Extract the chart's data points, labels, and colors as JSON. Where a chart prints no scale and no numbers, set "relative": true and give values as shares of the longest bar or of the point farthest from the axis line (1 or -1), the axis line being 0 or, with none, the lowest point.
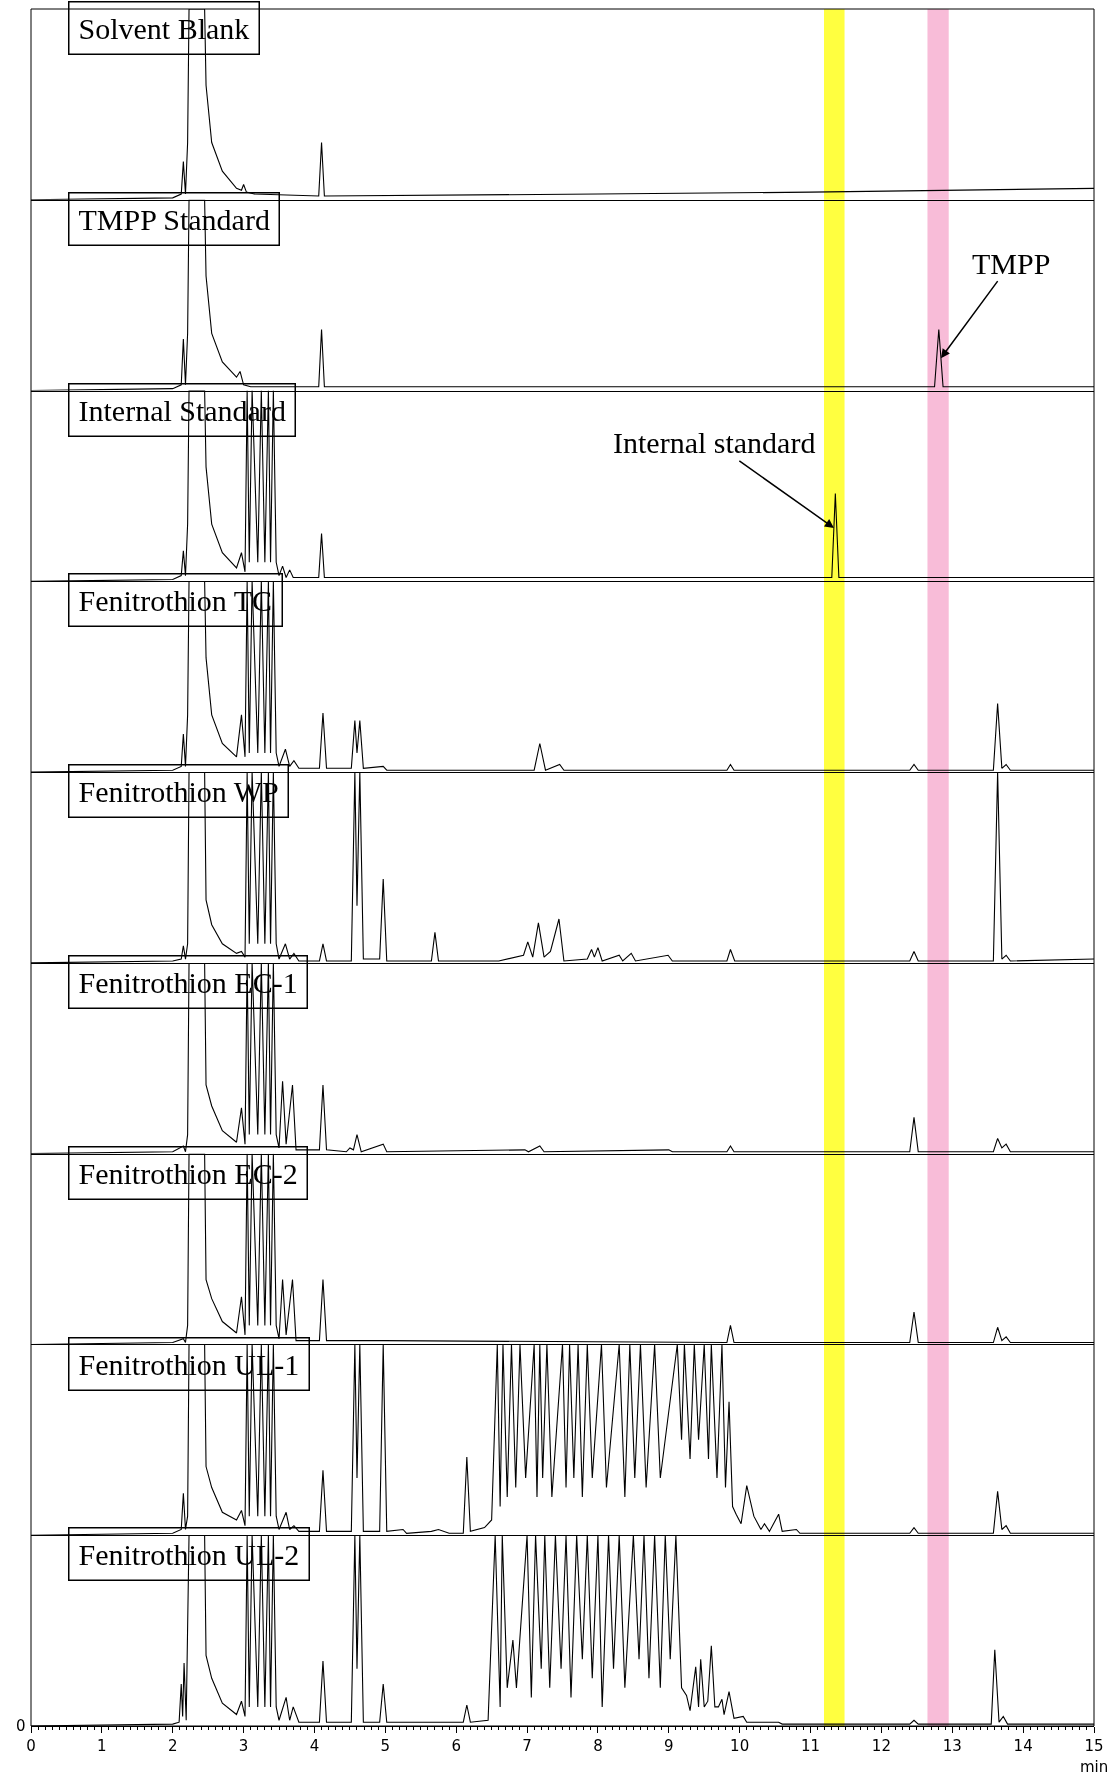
{
  "chart_data": [
    {
      "type": "line",
      "relative": true,
      "xlim": [
        0,
        15
      ],
      "tick_labels": false,
      "bands": [
        {
          "axis": "x",
          "from": 11.19,
          "to": 11.48,
          "color": "#ffff40"
        },
        {
          "axis": "x",
          "from": 12.65,
          "to": 12.95,
          "color": "#f8bcd8"
        }
      ],
      "series": [
        {
          "name": "Solvent Blank",
          "color": "#000000",
          "x": [
            0,
            2.0,
            2.12,
            2.15,
            2.18,
            2.21,
            2.23,
            2.45,
            2.47,
            2.55,
            2.7,
            2.9,
            2.97,
            3.0,
            3.04,
            3.15,
            4.06,
            4.1,
            4.14,
            8,
            11,
            15
          ],
          "values": [
            0,
            0.01,
            0.03,
            0.2,
            0.03,
            0.3,
            1,
            1,
            0.6,
            0.3,
            0.15,
            0.06,
            0.05,
            0.08,
            0.04,
            0.03,
            0.02,
            0.3,
            0.02,
            0.03,
            0.04,
            0.06
          ]
        }
      ]
    },
    {
      "type": "line",
      "relative": true,
      "xlim": [
        0,
        15
      ],
      "tick_labels": false,
      "bands": [
        {
          "axis": "x",
          "from": 11.19,
          "to": 11.48,
          "color": "#ffff40"
        },
        {
          "axis": "x",
          "from": 12.65,
          "to": 12.95,
          "color": "#f8bcd8"
        }
      ],
      "annotations": [
        {
          "text": "TMPP",
          "x": 12.84,
          "y": 0.17
        }
      ],
      "series": [
        {
          "name": "TMPP Standard",
          "color": "#000000",
          "x": [
            0,
            2.0,
            2.12,
            2.15,
            2.18,
            2.21,
            2.23,
            2.45,
            2.47,
            2.55,
            2.7,
            2.9,
            2.95,
            3.0,
            3.1,
            4.06,
            4.1,
            4.14,
            8,
            12.75,
            12.81,
            12.87,
            15
          ],
          "values": [
            0,
            0.01,
            0.03,
            0.27,
            0.03,
            0.3,
            1,
            1,
            0.6,
            0.3,
            0.15,
            0.07,
            0.1,
            0.03,
            0.02,
            0.02,
            0.32,
            0.02,
            0.02,
            0.02,
            0.32,
            0.02,
            0.02
          ]
        }
      ]
    },
    {
      "type": "line",
      "relative": true,
      "xlim": [
        0,
        15
      ],
      "tick_labels": false,
      "bands": [
        {
          "axis": "x",
          "from": 11.19,
          "to": 11.48,
          "color": "#ffff40"
        },
        {
          "axis": "x",
          "from": 12.65,
          "to": 12.95,
          "color": "#f8bcd8"
        }
      ],
      "annotations": [
        {
          "text": "Internal standard",
          "x": 11.33,
          "y": 0.28
        }
      ],
      "series": [
        {
          "name": "Internal Standard",
          "color": "#000000",
          "x": [
            0,
            2.0,
            2.12,
            2.15,
            2.18,
            2.21,
            2.23,
            2.45,
            2.47,
            2.55,
            2.7,
            2.9,
            2.97,
            3.02,
            3.05,
            3.08,
            3.12,
            3.2,
            3.25,
            3.3,
            3.35,
            3.38,
            3.42,
            3.46,
            3.5,
            3.55,
            3.6,
            3.65,
            3.7,
            4.06,
            4.1,
            4.14,
            8,
            11.3,
            11.35,
            11.4,
            15
          ],
          "values": [
            0,
            0.01,
            0.03,
            0.16,
            0.03,
            0.3,
            1,
            1,
            0.6,
            0.3,
            0.15,
            0.07,
            0.15,
            0.05,
            1,
            0.1,
            1,
            0.1,
            1,
            0.1,
            1,
            0.1,
            1,
            0.1,
            0.03,
            0.08,
            0.02,
            0.06,
            0.02,
            0.02,
            0.25,
            0.02,
            0.02,
            0.02,
            0.46,
            0.02,
            0.02
          ]
        }
      ]
    },
    {
      "type": "line",
      "relative": true,
      "xlim": [
        0,
        15
      ],
      "tick_labels": false,
      "bands": [
        {
          "axis": "x",
          "from": 11.19,
          "to": 11.48,
          "color": "#ffff40"
        },
        {
          "axis": "x",
          "from": 12.65,
          "to": 12.95,
          "color": "#f8bcd8"
        }
      ],
      "series": [
        {
          "name": "Fenitrothion TC",
          "color": "#000000",
          "x": [
            0,
            2.0,
            2.12,
            2.15,
            2.18,
            2.21,
            2.23,
            2.45,
            2.47,
            2.55,
            2.7,
            2.9,
            2.97,
            3.02,
            3.05,
            3.08,
            3.12,
            3.2,
            3.25,
            3.3,
            3.35,
            3.38,
            3.42,
            3.46,
            3.5,
            3.59,
            3.65,
            3.71,
            3.78,
            4.07,
            4.12,
            4.17,
            4.52,
            4.57,
            4.6,
            4.64,
            4.69,
            4.97,
            5.02,
            7.1,
            7.18,
            7.26,
            7.46,
            7.52,
            9.82,
            9.87,
            9.92,
            12.4,
            12.46,
            12.52,
            13.58,
            13.64,
            13.7,
            13.76,
            13.82,
            15
          ],
          "values": [
            0,
            0.01,
            0.03,
            0.2,
            0.03,
            0.3,
            1,
            1,
            0.6,
            0.3,
            0.15,
            0.08,
            0.3,
            0.08,
            1,
            0.1,
            1,
            0.1,
            1,
            0.1,
            1,
            0.1,
            1,
            0.1,
            0.03,
            0.12,
            0.03,
            0.06,
            0.02,
            0.02,
            0.31,
            0.02,
            0.02,
            0.27,
            0.1,
            0.27,
            0.02,
            0.03,
            0.01,
            0.01,
            0.15,
            0.01,
            0.04,
            0.01,
            0.01,
            0.04,
            0.01,
            0.01,
            0.04,
            0.01,
            0.01,
            0.36,
            0.02,
            0.04,
            0.01,
            0.01
          ]
        }
      ]
    },
    {
      "type": "line",
      "relative": true,
      "xlim": [
        0,
        15
      ],
      "tick_labels": false,
      "bands": [
        {
          "axis": "x",
          "from": 11.19,
          "to": 11.48,
          "color": "#ffff40"
        },
        {
          "axis": "x",
          "from": 12.65,
          "to": 12.95,
          "color": "#f8bcd8"
        }
      ],
      "series": [
        {
          "name": "Fenitrothion WP",
          "color": "#000000",
          "x": [
            0,
            2.0,
            2.12,
            2.15,
            2.18,
            2.21,
            2.23,
            2.45,
            2.47,
            2.55,
            2.7,
            2.9,
            2.97,
            3.02,
            3.05,
            3.08,
            3.12,
            3.2,
            3.25,
            3.3,
            3.35,
            3.38,
            3.42,
            3.46,
            3.5,
            3.59,
            3.65,
            3.71,
            3.78,
            4.07,
            4.12,
            4.17,
            4.52,
            4.57,
            4.6,
            4.64,
            4.69,
            4.92,
            4.97,
            5.02,
            5.65,
            5.7,
            5.75,
            6.6,
            6.95,
            7.01,
            7.08,
            7.16,
            7.24,
            7.33,
            7.45,
            7.52,
            7.85,
            7.91,
            7.95,
            8.0,
            8.06,
            8.3,
            8.35,
            8.47,
            8.53,
            8.99,
            9.05,
            9.82,
            9.87,
            9.93,
            12.4,
            12.46,
            12.52,
            13.58,
            13.64,
            13.7,
            13.76,
            13.82,
            15
          ],
          "values": [
            0,
            0.01,
            0.02,
            0.09,
            0.02,
            0.1,
            1,
            1,
            0.33,
            0.2,
            0.1,
            0.05,
            0.06,
            0.03,
            1,
            0.1,
            1,
            0.1,
            1,
            0.1,
            1,
            0.1,
            1,
            0.1,
            0.02,
            0.1,
            0.02,
            0.05,
            0.01,
            0.01,
            0.1,
            0.01,
            0.01,
            1,
            0.3,
            1,
            0.02,
            0.02,
            0.44,
            0.01,
            0.01,
            0.16,
            0.01,
            0.01,
            0.04,
            0.11,
            0.03,
            0.21,
            0.03,
            0.06,
            0.23,
            0.01,
            0.02,
            0.07,
            0.03,
            0.08,
            0.01,
            0.04,
            0.01,
            0.05,
            0.01,
            0.04,
            0.01,
            0.01,
            0.07,
            0.01,
            0.01,
            0.06,
            0.01,
            0.01,
            1,
            0.02,
            0.04,
            0.01,
            0.02
          ]
        }
      ]
    },
    {
      "type": "line",
      "relative": true,
      "xlim": [
        0,
        15
      ],
      "tick_labels": false,
      "bands": [
        {
          "axis": "x",
          "from": 11.19,
          "to": 11.48,
          "color": "#ffff40"
        },
        {
          "axis": "x",
          "from": 12.65,
          "to": 12.95,
          "color": "#f8bcd8"
        }
      ],
      "series": [
        {
          "name": "Fenitrothion EC-1",
          "color": "#000000",
          "x": [
            0,
            2.0,
            2.15,
            2.18,
            2.21,
            2.23,
            2.45,
            2.47,
            2.55,
            2.7,
            2.9,
            2.97,
            3.02,
            3.05,
            3.08,
            3.12,
            3.2,
            3.25,
            3.3,
            3.35,
            3.38,
            3.42,
            3.46,
            3.5,
            3.55,
            3.6,
            3.69,
            3.74,
            4.07,
            4.12,
            4.17,
            4.45,
            4.5,
            4.55,
            4.6,
            4.66,
            4.97,
            5.02,
            6.97,
            7.02,
            7.18,
            7.24,
            9.0,
            9.05,
            9.82,
            9.87,
            9.92,
            12.4,
            12.46,
            12.52,
            13.58,
            13.64,
            13.7,
            13.76,
            13.82,
            15
          ],
          "values": [
            0,
            0.01,
            0.04,
            0.01,
            0.1,
            1,
            1,
            0.36,
            0.25,
            0.12,
            0.06,
            0.24,
            0.05,
            1,
            0.1,
            1,
            0.1,
            1,
            0.1,
            1,
            0.1,
            1,
            0.1,
            0.03,
            0.38,
            0.05,
            0.36,
            0.02,
            0.02,
            0.36,
            0.02,
            0.01,
            0.03,
            0.02,
            0.1,
            0.01,
            0.05,
            0.01,
            0.02,
            0.01,
            0.04,
            0.01,
            0.02,
            0.01,
            0.01,
            0.04,
            0.01,
            0.01,
            0.19,
            0.01,
            0.01,
            0.08,
            0.03,
            0.05,
            0.01,
            0.01
          ]
        }
      ]
    },
    {
      "type": "line",
      "relative": true,
      "xlim": [
        0,
        15
      ],
      "tick_labels": false,
      "bands": [
        {
          "axis": "x",
          "from": 11.19,
          "to": 11.48,
          "color": "#ffff40"
        },
        {
          "axis": "x",
          "from": 12.65,
          "to": 12.95,
          "color": "#f8bcd8"
        }
      ],
      "series": [
        {
          "name": "Fenitrothion EC-2",
          "color": "#000000",
          "x": [
            0,
            2.0,
            2.15,
            2.18,
            2.21,
            2.23,
            2.45,
            2.47,
            2.55,
            2.7,
            2.9,
            2.97,
            3.02,
            3.05,
            3.08,
            3.12,
            3.2,
            3.25,
            3.3,
            3.35,
            3.38,
            3.42,
            3.46,
            3.5,
            3.55,
            3.6,
            3.69,
            3.74,
            4.07,
            4.12,
            4.17,
            4.97,
            9.82,
            9.87,
            9.92,
            12.4,
            12.46,
            12.52,
            13.58,
            13.64,
            13.7,
            13.76,
            13.82,
            15
          ],
          "values": [
            0,
            0.01,
            0.03,
            0.01,
            0.1,
            1,
            1,
            0.34,
            0.24,
            0.12,
            0.06,
            0.25,
            0.05,
            1,
            0.1,
            1,
            0.1,
            1,
            0.1,
            1,
            0.1,
            1,
            0.1,
            0.03,
            0.34,
            0.05,
            0.34,
            0.02,
            0.02,
            0.34,
            0.02,
            0.02,
            0.01,
            0.1,
            0.01,
            0.01,
            0.17,
            0.01,
            0.01,
            0.09,
            0.02,
            0.04,
            0.01,
            0.01
          ]
        }
      ]
    },
    {
      "type": "line",
      "relative": true,
      "xlim": [
        0,
        15
      ],
      "tick_labels": false,
      "bands": [
        {
          "axis": "x",
          "from": 11.19,
          "to": 11.48,
          "color": "#ffff40"
        },
        {
          "axis": "x",
          "from": 12.65,
          "to": 12.95,
          "color": "#f8bcd8"
        }
      ],
      "series": [
        {
          "name": "Fenitrothion UL-1",
          "color": "#000000",
          "x": [
            0,
            2.0,
            2.12,
            2.15,
            2.18,
            2.21,
            2.23,
            2.45,
            2.47,
            2.55,
            2.7,
            2.9,
            2.97,
            3.02,
            3.05,
            3.08,
            3.12,
            3.2,
            3.25,
            3.3,
            3.35,
            3.38,
            3.42,
            3.46,
            3.5,
            3.6,
            3.65,
            3.71,
            3.78,
            4.07,
            4.12,
            4.17,
            4.52,
            4.57,
            4.6,
            4.64,
            4.69,
            4.92,
            4.97,
            5.02,
            5.25,
            5.3,
            5.65,
            5.75,
            5.9,
            6.1,
            6.15,
            6.2,
            6.4,
            6.5,
            6.58,
            6.62,
            6.66,
            6.72,
            6.78,
            6.84,
            6.9,
            6.98,
            7.1,
            7.14,
            7.18,
            7.22,
            7.28,
            7.35,
            7.5,
            7.55,
            7.6,
            7.66,
            7.72,
            7.78,
            7.85,
            7.92,
            8.05,
            8.12,
            8.3,
            8.38,
            8.45,
            8.52,
            8.6,
            8.68,
            8.8,
            8.88,
            9.12,
            9.18,
            9.22,
            9.3,
            9.36,
            9.42,
            9.5,
            9.56,
            9.6,
            9.68,
            9.75,
            9.8,
            9.85,
            9.9,
            9.95,
            10.02,
            10.1,
            10.2,
            10.3,
            10.35,
            10.42,
            10.55,
            10.6,
            10.8,
            10.85,
            12.4,
            12.46,
            12.52,
            13.58,
            13.64,
            13.7,
            13.76,
            13.82,
            15
          ],
          "values": [
            0,
            0.01,
            0.03,
            0.22,
            0.03,
            0.1,
            1,
            1,
            0.36,
            0.25,
            0.12,
            0.08,
            0.13,
            0.05,
            1,
            0.1,
            1,
            0.1,
            1,
            0.1,
            1,
            0.1,
            1,
            0.1,
            0.03,
            0.12,
            0.03,
            0.05,
            0.02,
            0.02,
            0.34,
            0.02,
            0.02,
            1,
            0.3,
            1,
            0.02,
            0.02,
            1,
            0.02,
            0.03,
            0.01,
            0.02,
            0.03,
            0.01,
            0.01,
            0.41,
            0.02,
            0.04,
            0.08,
            1,
            0.15,
            1,
            0.2,
            1,
            0.25,
            1,
            0.3,
            1,
            0.2,
            1,
            0.3,
            1,
            0.2,
            1,
            0.25,
            1,
            0.3,
            1,
            0.2,
            1,
            0.3,
            1,
            0.25,
            1,
            0.2,
            1,
            0.3,
            1,
            0.25,
            1,
            0.3,
            1,
            0.5,
            1,
            0.4,
            1,
            0.5,
            1,
            0.4,
            1,
            0.3,
            1,
            0.25,
            0.7,
            0.15,
            0.11,
            0.06,
            0.26,
            0.1,
            0.03,
            0.06,
            0.02,
            0.11,
            0.02,
            0.03,
            0.01,
            0.01,
            0.04,
            0.01,
            0.01,
            0.23,
            0.03,
            0.05,
            0.01,
            0.01
          ]
        }
      ]
    },
    {
      "type": "line",
      "relative": true,
      "xlim": [
        0,
        15
      ],
      "xticks": [
        0,
        1,
        2,
        3,
        4,
        5,
        6,
        7,
        8,
        9,
        10,
        11,
        12,
        13,
        14,
        15
      ],
      "xlabel": "min",
      "tick_labels": "x",
      "bands": [
        {
          "axis": "x",
          "from": 11.19,
          "to": 11.48,
          "color": "#ffff40"
        },
        {
          "axis": "x",
          "from": 12.65,
          "to": 12.95,
          "color": "#f8bcd8"
        }
      ],
      "annotations": [
        "0"
      ],
      "series": [
        {
          "name": "Fenitrothion UL-2",
          "color": "#000000",
          "x": [
            0,
            2.0,
            2.09,
            2.12,
            2.14,
            2.16,
            2.19,
            2.23,
            2.45,
            2.47,
            2.55,
            2.7,
            2.9,
            2.97,
            3.02,
            3.05,
            3.08,
            3.12,
            3.2,
            3.25,
            3.3,
            3.35,
            3.38,
            3.42,
            3.46,
            3.5,
            3.6,
            3.65,
            3.7,
            3.78,
            4.07,
            4.12,
            4.17,
            4.52,
            4.57,
            4.6,
            4.64,
            4.69,
            4.92,
            4.97,
            5.02,
            6.1,
            6.15,
            6.2,
            6.45,
            6.55,
            6.62,
            6.65,
            6.72,
            6.8,
            6.85,
            7.0,
            7.06,
            7.12,
            7.2,
            7.25,
            7.32,
            7.4,
            7.48,
            7.55,
            7.62,
            7.7,
            7.78,
            7.85,
            7.92,
            8.0,
            8.06,
            8.15,
            8.22,
            8.3,
            8.38,
            8.5,
            8.58,
            8.65,
            8.72,
            8.8,
            8.88,
            8.95,
            9.02,
            9.1,
            9.18,
            9.25,
            9.3,
            9.38,
            9.42,
            9.45,
            9.5,
            9.55,
            9.6,
            9.65,
            9.7,
            9.75,
            9.78,
            9.85,
            9.92,
            10.05,
            10.1,
            10.55,
            10.6,
            12.4,
            12.46,
            12.52,
            13.55,
            13.6,
            13.66,
            13.72,
            13.78,
            15
          ],
          "values": [
            0,
            0.01,
            0.02,
            0.22,
            0.05,
            0.33,
            0.03,
            1,
            1,
            0.37,
            0.25,
            0.12,
            0.06,
            0.13,
            0.05,
            1,
            0.1,
            1,
            0.1,
            1,
            0.1,
            1,
            0.1,
            1,
            0.1,
            0.03,
            0.15,
            0.03,
            0.1,
            0.02,
            0.02,
            0.34,
            0.02,
            0.02,
            1,
            0.3,
            1,
            0.02,
            0.02,
            0.22,
            0.02,
            0.02,
            0.11,
            0.02,
            0.03,
            1,
            0.1,
            1,
            0.2,
            0.45,
            0.2,
            1,
            0.15,
            1,
            0.3,
            1,
            0.2,
            1,
            0.3,
            1,
            0.15,
            1,
            0.35,
            1,
            0.25,
            1,
            0.1,
            1,
            0.3,
            1,
            0.2,
            1,
            0.35,
            1,
            0.25,
            1,
            0.2,
            1,
            0.35,
            1,
            0.2,
            0.16,
            0.08,
            0.31,
            0.1,
            0.35,
            0.1,
            0.13,
            0.42,
            0.1,
            0.1,
            0.14,
            0.06,
            0.18,
            0.04,
            0.05,
            0.02,
            0.02,
            0.01,
            0.01,
            0.03,
            0.01,
            0.01,
            0.4,
            0.02,
            0.05,
            0.01,
            0.01
          ]
        }
      ]
    }
  ]
}
